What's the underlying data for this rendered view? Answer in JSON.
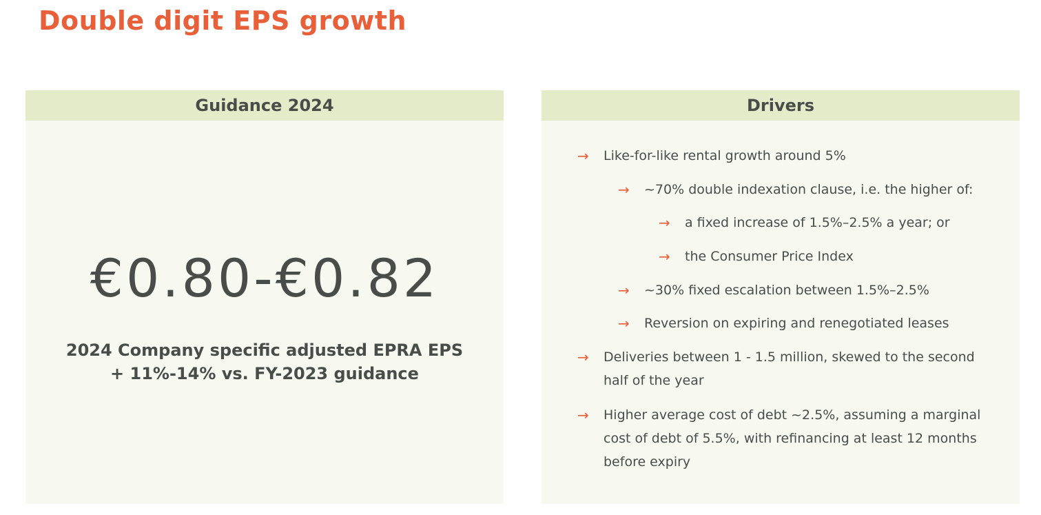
{
  "slide": {
    "title": "Double digit EPS growth"
  },
  "guidance": {
    "header": "Guidance 2024",
    "range": "€0.80-€0.82",
    "subtitle_line1": "2024 Company specific adjusted EPRA EPS",
    "subtitle_line2": "+ 11%-14% vs. FY-2023 guidance"
  },
  "drivers": {
    "header": "Drivers",
    "items": [
      {
        "text": "Like-for-like rental growth around 5%",
        "level": 1
      },
      {
        "text": "~70% double indexation clause, i.e. the higher of:",
        "level": 2
      },
      {
        "text": "a fixed increase of 1.5%–2.5% a year; or",
        "level": 3
      },
      {
        "text": "the Consumer Price Index",
        "level": 3
      },
      {
        "text": "~30% fixed escalation between 1.5%–2.5%",
        "level": 2
      },
      {
        "text": "Reversion on expiring and renegotiated leases",
        "level": 2
      },
      {
        "text": "Deliveries between 1 - 1.5 million, skewed to the second half of the year",
        "level": 1
      },
      {
        "text": "Higher average cost of debt ~2.5%, assuming a marginal cost of debt of 5.5%, with refinancing at least 12 months before expiry",
        "level": 1
      }
    ],
    "arrow_glyph": "→"
  },
  "colors": {
    "accent": "#e8603a",
    "header_bg": "#e3ebc9",
    "panel_bg": "#f7f9f1",
    "text": "#484d4a"
  }
}
